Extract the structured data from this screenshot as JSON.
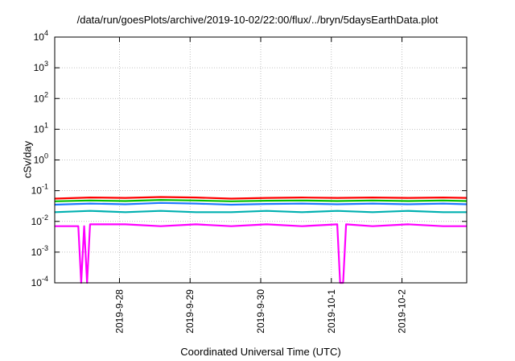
{
  "chart_data": {
    "type": "line",
    "title": "/data/run/goesPlots/archive/2019-10-02/22:00/flux/../bryn/5daysEarthData.plot",
    "xlabel": "Coordinated Universal Time (UTC)",
    "ylabel": "cSv/day",
    "yscale": "log",
    "ylim": [
      0.0001,
      10000
    ],
    "y_ticks": [
      {
        "value": 0.0001,
        "base": "10",
        "exp": "-4"
      },
      {
        "value": 0.001,
        "base": "10",
        "exp": "-3"
      },
      {
        "value": 0.01,
        "base": "10",
        "exp": "-2"
      },
      {
        "value": 0.1,
        "base": "10",
        "exp": "-1"
      },
      {
        "value": 1,
        "base": "10",
        "exp": "0"
      },
      {
        "value": 10,
        "base": "10",
        "exp": "1"
      },
      {
        "value": 100,
        "base": "10",
        "exp": "2"
      },
      {
        "value": 1000,
        "base": "10",
        "exp": "3"
      },
      {
        "value": 10000,
        "base": "10",
        "exp": "4"
      }
    ],
    "xlim": [
      "2019-09-27 02:00",
      "2019-10-02 22:00"
    ],
    "x_ticks": [
      {
        "label": "2019-9-28",
        "value": "2019-09-28 00:00"
      },
      {
        "label": "2019-9-29",
        "value": "2019-09-29 00:00"
      },
      {
        "label": "2019-9-30",
        "value": "2019-09-30 00:00"
      },
      {
        "label": "2019-10-1",
        "value": "2019-10-01 00:00"
      },
      {
        "label": "2019-10-2",
        "value": "2019-10-02 00:00"
      }
    ],
    "grid": true,
    "series": [
      {
        "color": "#ff0000",
        "x": [
          "2019-09-27 02:00",
          "2019-09-27 14:00",
          "2019-09-28 02:00",
          "2019-09-28 14:00",
          "2019-09-29 02:00",
          "2019-09-29 14:00",
          "2019-09-30 02:00",
          "2019-09-30 14:00",
          "2019-10-01 02:00",
          "2019-10-01 14:00",
          "2019-10-02 02:00",
          "2019-10-02 14:00",
          "2019-10-02 22:00"
        ],
        "y": [
          0.055,
          0.06,
          0.058,
          0.062,
          0.06,
          0.055,
          0.058,
          0.06,
          0.058,
          0.06,
          0.058,
          0.06,
          0.058
        ]
      },
      {
        "color": "#00c000",
        "x": [
          "2019-09-27 02:00",
          "2019-09-27 14:00",
          "2019-09-28 02:00",
          "2019-09-28 14:00",
          "2019-09-29 02:00",
          "2019-09-29 14:00",
          "2019-09-30 02:00",
          "2019-09-30 14:00",
          "2019-10-01 02:00",
          "2019-10-01 14:00",
          "2019-10-02 02:00",
          "2019-10-02 14:00",
          "2019-10-02 22:00"
        ],
        "y": [
          0.045,
          0.048,
          0.046,
          0.05,
          0.048,
          0.045,
          0.047,
          0.048,
          0.046,
          0.048,
          0.046,
          0.048,
          0.046
        ]
      },
      {
        "color": "#00b0b0",
        "x": [
          "2019-09-27 02:00",
          "2019-09-27 14:00",
          "2019-09-28 02:00",
          "2019-09-28 14:00",
          "2019-09-29 02:00",
          "2019-09-29 14:00",
          "2019-09-30 02:00",
          "2019-09-30 14:00",
          "2019-10-01 02:00",
          "2019-10-01 14:00",
          "2019-10-02 02:00",
          "2019-10-02 14:00",
          "2019-10-02 22:00"
        ],
        "y": [
          0.02,
          0.022,
          0.02,
          0.022,
          0.02,
          0.02,
          0.022,
          0.02,
          0.022,
          0.02,
          0.022,
          0.02,
          0.02
        ]
      },
      {
        "color": "#1e78ff",
        "x": [
          "2019-09-27 02:00",
          "2019-09-27 14:00",
          "2019-09-28 02:00",
          "2019-09-28 14:00",
          "2019-09-29 02:00",
          "2019-09-29 14:00",
          "2019-09-30 02:00",
          "2019-09-30 14:00",
          "2019-10-01 02:00",
          "2019-10-01 14:00",
          "2019-10-02 02:00",
          "2019-10-02 14:00",
          "2019-10-02 22:00"
        ],
        "y": [
          0.035,
          0.038,
          0.036,
          0.04,
          0.038,
          0.035,
          0.037,
          0.038,
          0.036,
          0.038,
          0.036,
          0.038,
          0.036
        ]
      },
      {
        "color": "#ff00ff",
        "x": [
          "2019-09-27 02:00",
          "2019-09-27 10:00",
          "2019-09-27 11:00",
          "2019-09-27 12:00",
          "2019-09-27 13:00",
          "2019-09-27 14:00",
          "2019-09-28 02:00",
          "2019-09-28 14:00",
          "2019-09-29 02:00",
          "2019-09-29 14:00",
          "2019-09-30 02:00",
          "2019-09-30 14:00",
          "2019-10-01 02:00",
          "2019-10-01 03:00",
          "2019-10-01 04:00",
          "2019-10-01 05:00",
          "2019-10-01 14:00",
          "2019-10-02 02:00",
          "2019-10-02 14:00",
          "2019-10-02 22:00"
        ],
        "y": [
          0.007,
          0.007,
          0.0001,
          0.007,
          0.0001,
          0.008,
          0.008,
          0.007,
          0.008,
          0.007,
          0.008,
          0.007,
          0.008,
          0.0001,
          0.0001,
          0.008,
          0.007,
          0.008,
          0.007,
          0.007
        ]
      }
    ]
  }
}
